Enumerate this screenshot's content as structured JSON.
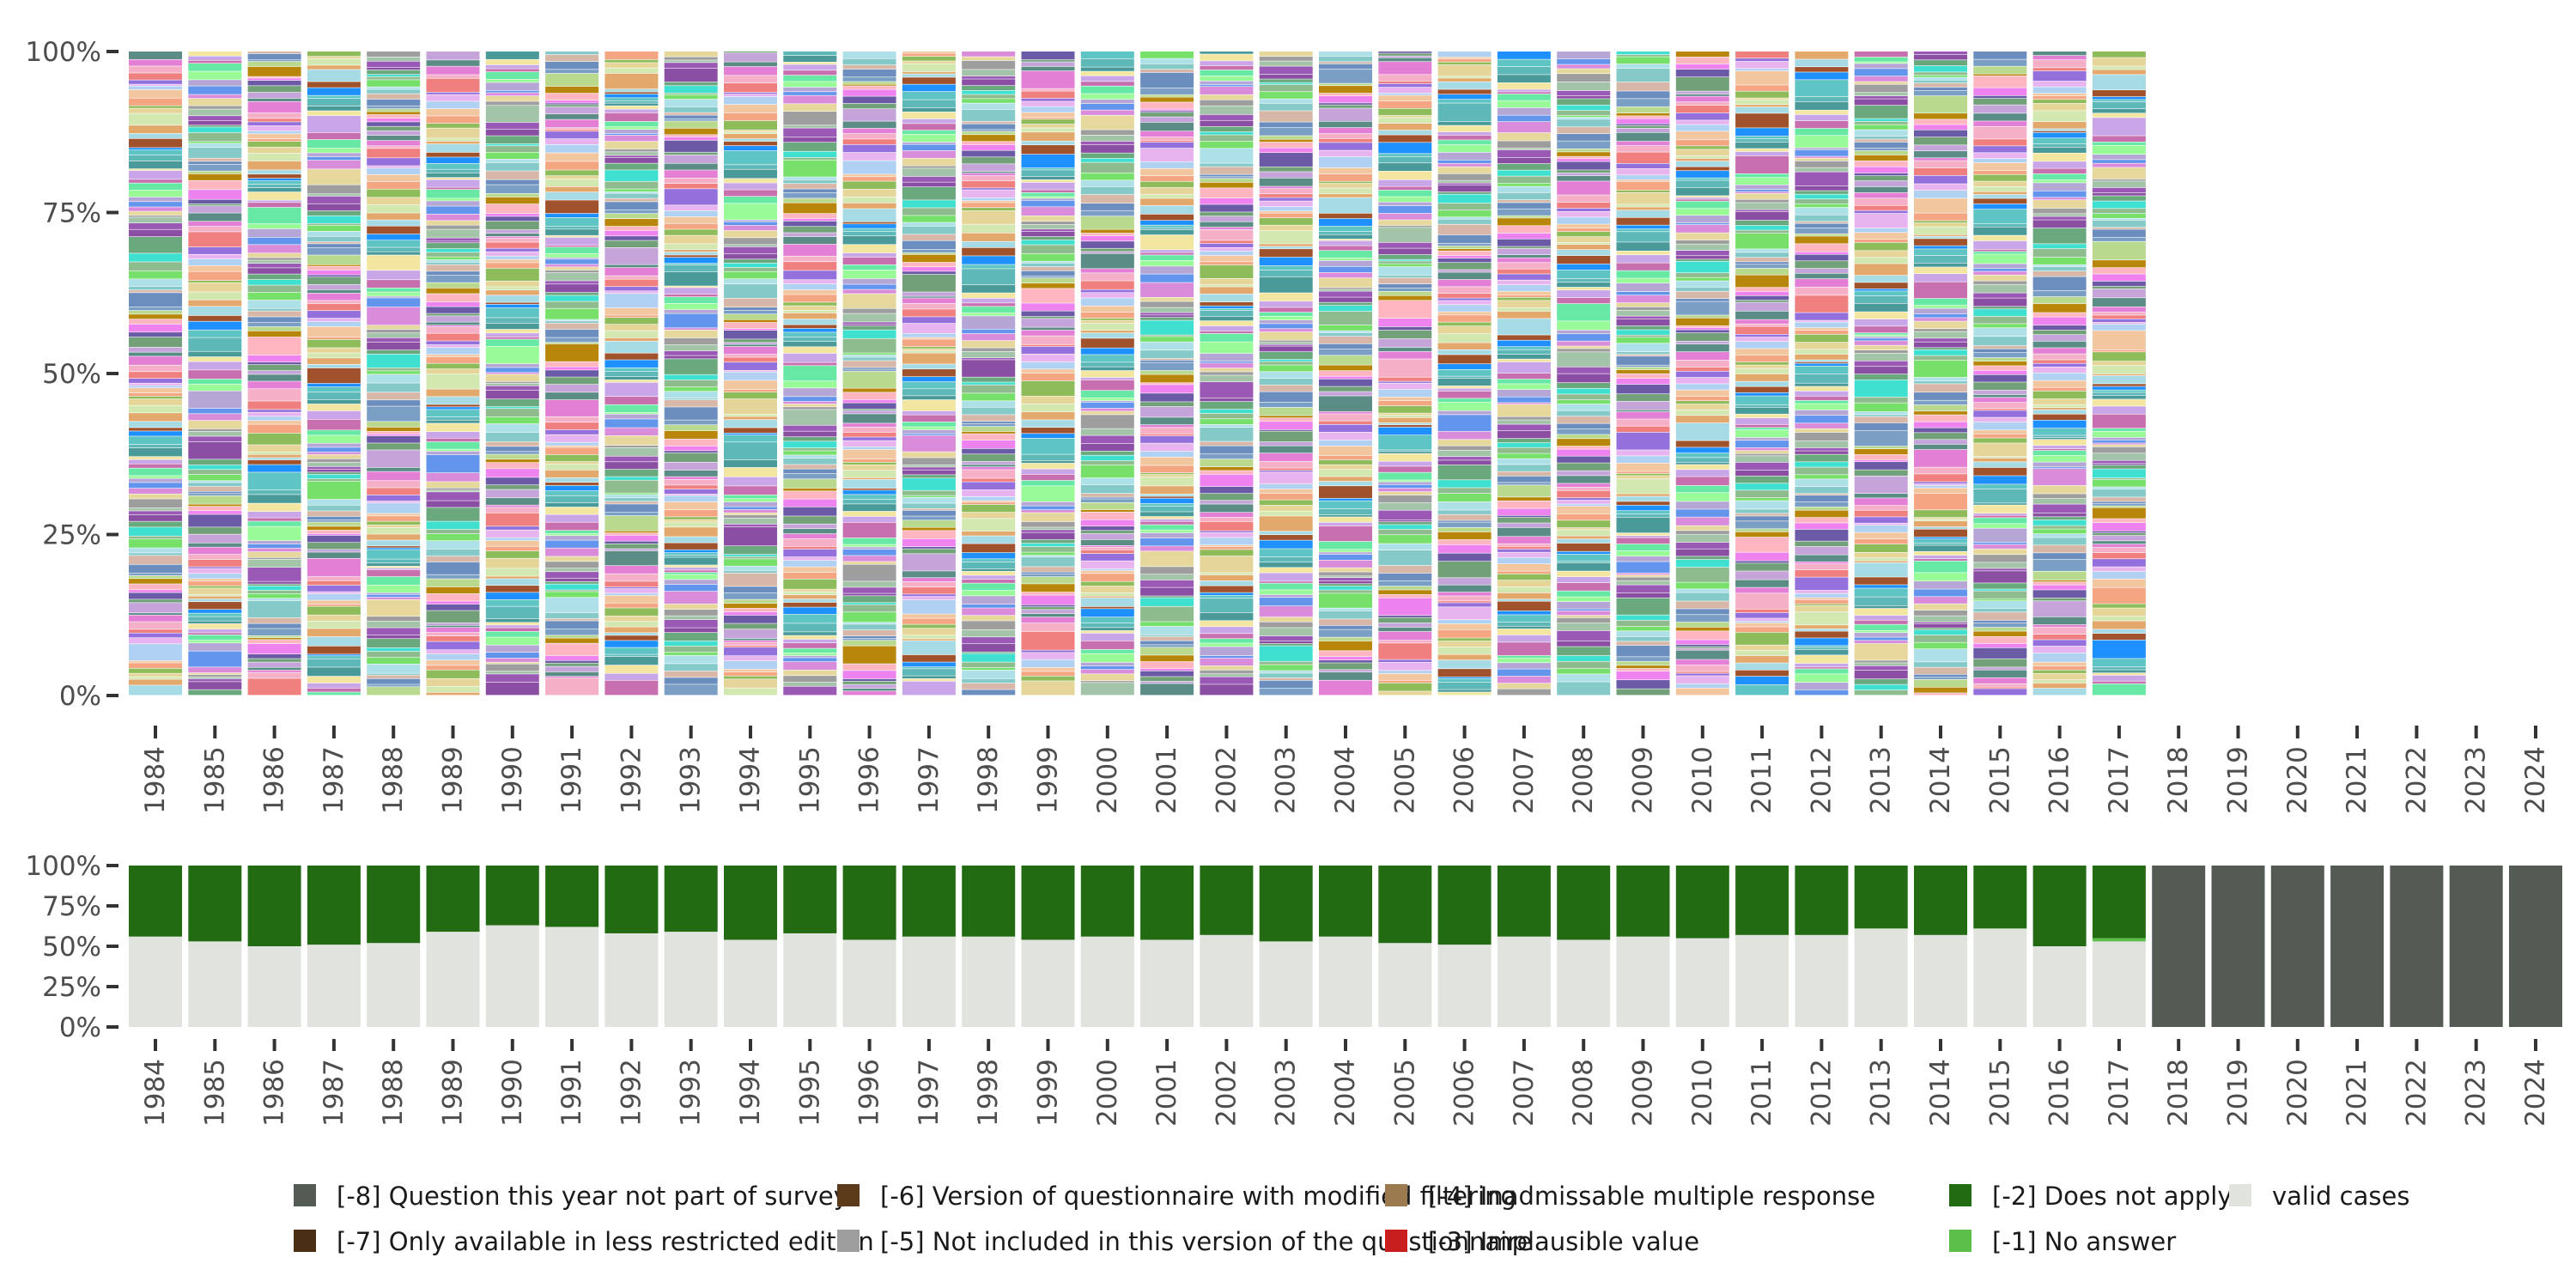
{
  "chart_data": [
    {
      "type": "bar",
      "stacked": true,
      "normalized": true,
      "title": "",
      "xlabel": "",
      "ylabel": "",
      "ylim": [
        0,
        100
      ],
      "y_ticks": [
        "0%",
        "25%",
        "50%",
        "75%",
        "100%"
      ],
      "grid": false,
      "categories": [
        "1984",
        "1985",
        "1986",
        "1987",
        "1988",
        "1989",
        "1990",
        "1991",
        "1992",
        "1993",
        "1994",
        "1995",
        "1996",
        "1997",
        "1998",
        "1999",
        "2000",
        "2001",
        "2002",
        "2003",
        "2004",
        "2005",
        "2006",
        "2007",
        "2008",
        "2009",
        "2010",
        "2011",
        "2012",
        "2013",
        "2014",
        "2015",
        "2016",
        "2017",
        "2018",
        "2019",
        "2020",
        "2021",
        "2022",
        "2023",
        "2024"
      ],
      "note": "Stacked 100% bars for 1984-2017, each composed of many thin colored category segments; 2018-2024 empty",
      "series_palette": [
        "#a6dbe6",
        "#6aa87d",
        "#f08080",
        "#67e8a4",
        "#b9d98f",
        "#e3a86b",
        "#8a4fa3",
        "#f5b0c8",
        "#c86fb0",
        "#7b9fc4",
        "#d2e8b0",
        "#9b59b6",
        "#e47fd6",
        "#c9a6e8",
        "#6c8ebf",
        "#e6d598",
        "#a3c4a8",
        "#5b8c85",
        "#f3e6a1",
        "#d7b8a8",
        "#8fbc5a",
        "#9e9e9e",
        "#c4a4d9",
        "#4a9a9a",
        "#85c9c9",
        "#f4a582",
        "#e6d89c",
        "#72a078",
        "#5fb8b8",
        "#aee0e8",
        "#f2c7a0",
        "#d98cd9",
        "#6b5aa6",
        "#5ec4c4",
        "#77e06b",
        "#b0d1f2",
        "#6495ed",
        "#ee82ee",
        "#1e90ff",
        "#8fbc8f",
        "#e8b4f0",
        "#b5a6d6",
        "#ffb6c1",
        "#a0522d",
        "#40e0d0",
        "#9370db",
        "#98fb98",
        "#b8860b"
      ]
    },
    {
      "type": "bar",
      "stacked": true,
      "normalized": true,
      "title": "",
      "ylim": [
        0,
        100
      ],
      "y_ticks": [
        "0%",
        "25%",
        "50%",
        "75%",
        "100%"
      ],
      "categories": [
        "1984",
        "1985",
        "1986",
        "1987",
        "1988",
        "1989",
        "1990",
        "1991",
        "1992",
        "1993",
        "1994",
        "1995",
        "1996",
        "1997",
        "1998",
        "1999",
        "2000",
        "2001",
        "2002",
        "2003",
        "2004",
        "2005",
        "2006",
        "2007",
        "2008",
        "2009",
        "2010",
        "2011",
        "2012",
        "2013",
        "2014",
        "2015",
        "2016",
        "2017",
        "2018",
        "2019",
        "2020",
        "2021",
        "2022",
        "2023",
        "2024"
      ],
      "series": [
        {
          "name": "valid cases",
          "color": "#e0e3de",
          "values": [
            56,
            53,
            50,
            51,
            52,
            59,
            63,
            62,
            58,
            59,
            54,
            58,
            54,
            56,
            56,
            54,
            56,
            54,
            57,
            53,
            56,
            52,
            51,
            56,
            54,
            56,
            55,
            57,
            57,
            61,
            57,
            61,
            50,
            53,
            0,
            0,
            0,
            0,
            0,
            0,
            0
          ]
        },
        {
          "name": "[-1] No answer",
          "color": "#5bbf4a",
          "values": [
            0,
            0,
            0,
            0,
            0,
            0,
            0,
            0,
            0,
            0,
            0,
            0,
            0,
            0,
            0,
            0,
            0,
            0,
            0,
            0,
            0,
            0,
            0,
            0,
            0,
            0,
            0,
            0,
            0,
            0,
            0,
            0,
            0,
            2,
            0,
            0,
            0,
            0,
            0,
            0,
            0
          ]
        },
        {
          "name": "[-2] Does not apply",
          "color": "#236b12",
          "values": [
            44,
            47,
            50,
            49,
            48,
            41,
            37,
            38,
            42,
            41,
            46,
            42,
            46,
            44,
            44,
            46,
            44,
            46,
            43,
            47,
            44,
            48,
            49,
            44,
            46,
            44,
            45,
            43,
            43,
            39,
            43,
            39,
            50,
            45,
            0,
            0,
            0,
            0,
            0,
            0,
            0
          ]
        },
        {
          "name": "[-8] Question this year not part of survey",
          "color": "#545b55",
          "values": [
            0,
            0,
            0,
            0,
            0,
            0,
            0,
            0,
            0,
            0,
            0,
            0,
            0,
            0,
            0,
            0,
            0,
            0,
            0,
            0,
            0,
            0,
            0,
            0,
            0,
            0,
            0,
            0,
            0,
            0,
            0,
            0,
            0,
            0,
            100,
            100,
            100,
            100,
            100,
            100,
            100
          ]
        }
      ]
    }
  ],
  "legend": {
    "position": "bottom",
    "items": [
      {
        "label": "[-8] Question this year not part of survey",
        "color": "#545b55"
      },
      {
        "label": "[-6] Version of questionnaire with modified filtering",
        "color": "#5c3b1a"
      },
      {
        "label": "[-4] Inadmissable multiple response",
        "color": "#9c7a4f"
      },
      {
        "label": "[-2] Does not apply",
        "color": "#236b12"
      },
      {
        "label": "valid cases",
        "color": "#e0e3de"
      },
      {
        "label": "[-7] Only available in less restricted edition",
        "color": "#4a2f14"
      },
      {
        "label": "[-5] Not included in this version of the questionnaire",
        "color": "#9e9e9e"
      },
      {
        "label": "[-3] Implausible value",
        "color": "#c81e1e"
      },
      {
        "label": "[-1] No answer",
        "color": "#5bbf4a"
      }
    ]
  }
}
